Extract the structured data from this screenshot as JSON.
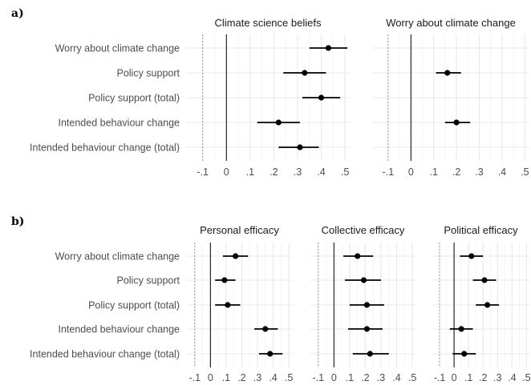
{
  "chart_data": [
    {
      "type": "scatter",
      "panel_label": "a)",
      "categories": [
        "Worry about climate change",
        "Policy support",
        "Policy support (total)",
        "Intended behaviour change",
        "Intended behaviour change (total)"
      ],
      "x_ticks": [
        "-.1",
        "0",
        ".1",
        ".2",
        ".3",
        ".4",
        ".5"
      ],
      "xlim": [
        -0.17,
        0.52
      ],
      "reference_x": -0.1,
      "facets": [
        {
          "title": "Climate science beliefs",
          "estimates": [
            0.43,
            0.33,
            0.4,
            0.22,
            0.31
          ],
          "ci_low": [
            0.35,
            0.24,
            0.32,
            0.13,
            0.22
          ],
          "ci_high": [
            0.51,
            0.42,
            0.48,
            0.31,
            0.39
          ]
        },
        {
          "title": "Worry about climate change",
          "estimates": [
            null,
            0.16,
            null,
            0.2,
            null
          ],
          "ci_low": [
            null,
            0.11,
            null,
            0.15,
            null
          ],
          "ci_high": [
            null,
            0.22,
            null,
            0.26,
            null
          ]
        }
      ]
    },
    {
      "type": "scatter",
      "panel_label": "b)",
      "categories": [
        "Worry about climate change",
        "Policy support",
        "Policy support (total)",
        "Intended behaviour change",
        "Intended behaviour change (total)"
      ],
      "x_ticks": [
        "-.1",
        "0",
        ".1",
        ".2",
        ".3",
        ".4",
        ".5"
      ],
      "xlim": [
        -0.15,
        0.52
      ],
      "reference_x": -0.1,
      "facets": [
        {
          "title": "Personal efficacy",
          "estimates": [
            0.16,
            0.09,
            0.11,
            0.35,
            0.38
          ],
          "ci_low": [
            0.08,
            0.03,
            0.03,
            0.28,
            0.31
          ],
          "ci_high": [
            0.24,
            0.16,
            0.19,
            0.43,
            0.46
          ]
        },
        {
          "title": "Collective efficacy",
          "estimates": [
            0.15,
            0.19,
            0.21,
            0.21,
            0.23
          ],
          "ci_low": [
            0.06,
            0.07,
            0.1,
            0.09,
            0.12
          ],
          "ci_high": [
            0.25,
            0.3,
            0.32,
            0.31,
            0.35
          ]
        },
        {
          "title": "Political efficacy",
          "estimates": [
            0.12,
            0.21,
            0.23,
            0.05,
            0.07
          ],
          "ci_low": [
            0.04,
            0.13,
            0.15,
            -0.03,
            -0.01
          ],
          "ci_high": [
            0.2,
            0.29,
            0.31,
            0.13,
            0.15
          ]
        }
      ]
    }
  ]
}
